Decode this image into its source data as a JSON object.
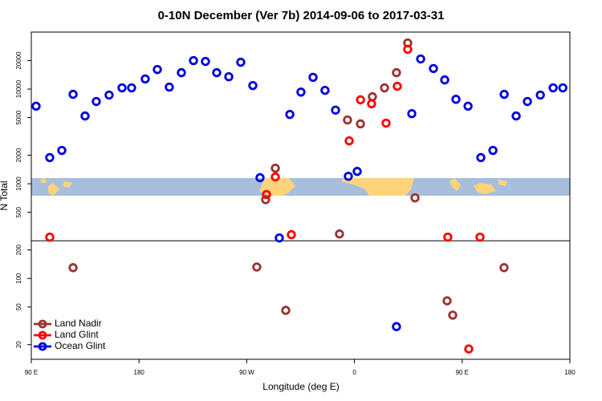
{
  "chart_data": {
    "type": "scatter",
    "title": "0-10N December (Ver 7b)   2014-09-06 to 2017-03-31",
    "x_label": "Longitude (deg E)",
    "y_label": "N Total",
    "log_y": true,
    "legend": "bottom-left",
    "reference_line": 250,
    "xlim": [
      90,
      540
    ],
    "xticks": [
      {
        "value": 90,
        "label": "90 E"
      },
      180,
      {
        "value": 270,
        "label": "90 W"
      },
      {
        "value": 360,
        "label": "0"
      },
      {
        "value": 450,
        "label": "90 E"
      },
      {
        "value": 540,
        "label": "180"
      }
    ],
    "ylim": [
      14,
      40000
    ],
    "yticks": [
      20,
      50,
      100,
      200,
      500,
      1000,
      2000,
      5000,
      10000,
      20000
    ],
    "series": [
      {
        "name": "Land Nadir",
        "color": "#993333",
        "x": [
          124.9,
          278.4,
          293.9,
          285.8,
          302.6,
          347.5,
          354.2,
          365.0,
          375.0,
          385.1,
          395.1,
          404.5,
          410.6,
          437.4,
          442.1,
          485.0
        ],
        "values": [
          130,
          132,
          1460,
          680,
          46,
          295,
          4720,
          4290,
          8300,
          10300,
          14900,
          30700,
          710,
          58,
          41,
          130
        ]
      },
      {
        "name": "Land Glint",
        "color": "#ff0000",
        "x": [
          105.4,
          286.5,
          293.9,
          307.3,
          355.6,
          365.0,
          374.3,
          386.4,
          395.8,
          404.5,
          438.0,
          464.9,
          455.5
        ],
        "values": [
          273,
          770,
          1180,
          290,
          2840,
          7700,
          7000,
          4370,
          10700,
          26300,
          273,
          273,
          18
        ]
      },
      {
        "name": "Ocean Glint",
        "color": "#0000dd",
        "x": [
          94.0,
          105.4,
          115.5,
          124.9,
          134.9,
          144.3,
          155.0,
          165.8,
          173.8,
          185.2,
          195.3,
          205.3,
          215.4,
          225.5,
          235.5,
          244.9,
          255.0,
          265.0,
          275.1,
          281.1,
          297.2,
          306.0,
          315.3,
          325.4,
          335.4,
          344.2,
          354.9,
          362.3,
          407.9,
          415.3,
          426.0,
          435.4,
          444.8,
          454.9,
          465.6,
          475.7,
          485.1,
          495.1,
          504.5,
          515.3,
          526.0,
          534.1,
          395.1
        ],
        "values": [
          6600,
          1890,
          2250,
          8800,
          5200,
          7400,
          8650,
          10300,
          10300,
          12800,
          16100,
          10500,
          14900,
          20000,
          19600,
          14900,
          13500,
          19200,
          10900,
          1160,
          268,
          5400,
          9300,
          13300,
          9700,
          6000,
          1200,
          1350,
          5500,
          20800,
          16500,
          12500,
          7800,
          6600,
          1890,
          2250,
          8800,
          5200,
          7400,
          8650,
          10300,
          10300,
          31
        ]
      }
    ]
  }
}
